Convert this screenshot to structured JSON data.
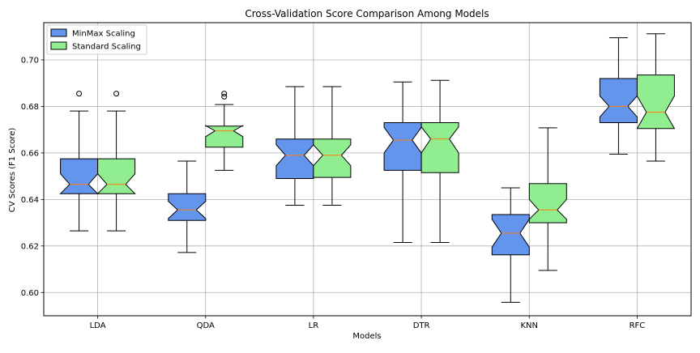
{
  "chart_data": {
    "type": "boxplot",
    "title": "Cross-Validation Score Comparison Among Models",
    "xlabel": "Models",
    "ylabel": "CV Scores (F1 Score)",
    "ylim": [
      0.59,
      0.716
    ],
    "yticks": [
      "0.60",
      "0.62",
      "0.64",
      "0.66",
      "0.68",
      "0.70"
    ],
    "categories": [
      "LDA",
      "QDA",
      "LR",
      "DTR",
      "KNN",
      "RFC"
    ],
    "grid": true,
    "notched": true,
    "legend_position": "top-left",
    "series": [
      {
        "name": "MinMax Scaling",
        "color": "#6495ED",
        "boxes": [
          {
            "whislo": 0.6265,
            "q1": 0.6425,
            "med": 0.6465,
            "q3": 0.6575,
            "whishi": 0.678,
            "notch_lo": 0.6425,
            "notch_hi": 0.651,
            "fliers": [
              0.6855
            ]
          },
          {
            "whislo": 0.6172,
            "q1": 0.631,
            "med": 0.6355,
            "q3": 0.6425,
            "whishi": 0.6565,
            "notch_lo": 0.6318,
            "notch_hi": 0.6392,
            "fliers": []
          },
          {
            "whislo": 0.6375,
            "q1": 0.649,
            "med": 0.659,
            "q3": 0.666,
            "whishi": 0.6885,
            "notch_lo": 0.6545,
            "notch_hi": 0.6635,
            "fliers": []
          },
          {
            "whislo": 0.6215,
            "q1": 0.6525,
            "med": 0.6655,
            "q3": 0.673,
            "whishi": 0.6905,
            "notch_lo": 0.66,
            "notch_hi": 0.671,
            "fliers": []
          },
          {
            "whislo": 0.5958,
            "q1": 0.6162,
            "med": 0.6255,
            "q3": 0.6335,
            "whishi": 0.645,
            "notch_lo": 0.6195,
            "notch_hi": 0.6315,
            "fliers": []
          },
          {
            "whislo": 0.6595,
            "q1": 0.673,
            "med": 0.68,
            "q3": 0.692,
            "whishi": 0.7095,
            "notch_lo": 0.6755,
            "notch_hi": 0.6845,
            "fliers": []
          }
        ]
      },
      {
        "name": "Standard Scaling",
        "color": "#90EE90",
        "boxes": [
          {
            "whislo": 0.6265,
            "q1": 0.6425,
            "med": 0.6465,
            "q3": 0.6575,
            "whishi": 0.678,
            "notch_lo": 0.6425,
            "notch_hi": 0.651,
            "fliers": [
              0.6855
            ]
          },
          {
            "whislo": 0.6525,
            "q1": 0.6625,
            "med": 0.6695,
            "q3": 0.6715,
            "whishi": 0.6808,
            "notch_lo": 0.667,
            "notch_hi": 0.6718,
            "fliers": [
              0.6842,
              0.6855
            ]
          },
          {
            "whislo": 0.6375,
            "q1": 0.6495,
            "med": 0.659,
            "q3": 0.666,
            "whishi": 0.6885,
            "notch_lo": 0.6545,
            "notch_hi": 0.6635,
            "fliers": []
          },
          {
            "whislo": 0.6215,
            "q1": 0.6515,
            "med": 0.666,
            "q3": 0.673,
            "whishi": 0.6912,
            "notch_lo": 0.66,
            "notch_hi": 0.6712,
            "fliers": []
          },
          {
            "whislo": 0.6095,
            "q1": 0.63,
            "med": 0.6355,
            "q3": 0.6468,
            "whishi": 0.6708,
            "notch_lo": 0.6315,
            "notch_hi": 0.64,
            "fliers": []
          },
          {
            "whislo": 0.6565,
            "q1": 0.6705,
            "med": 0.6775,
            "q3": 0.6935,
            "whishi": 0.7112,
            "notch_lo": 0.6705,
            "notch_hi": 0.6845,
            "fliers": []
          }
        ]
      }
    ]
  }
}
